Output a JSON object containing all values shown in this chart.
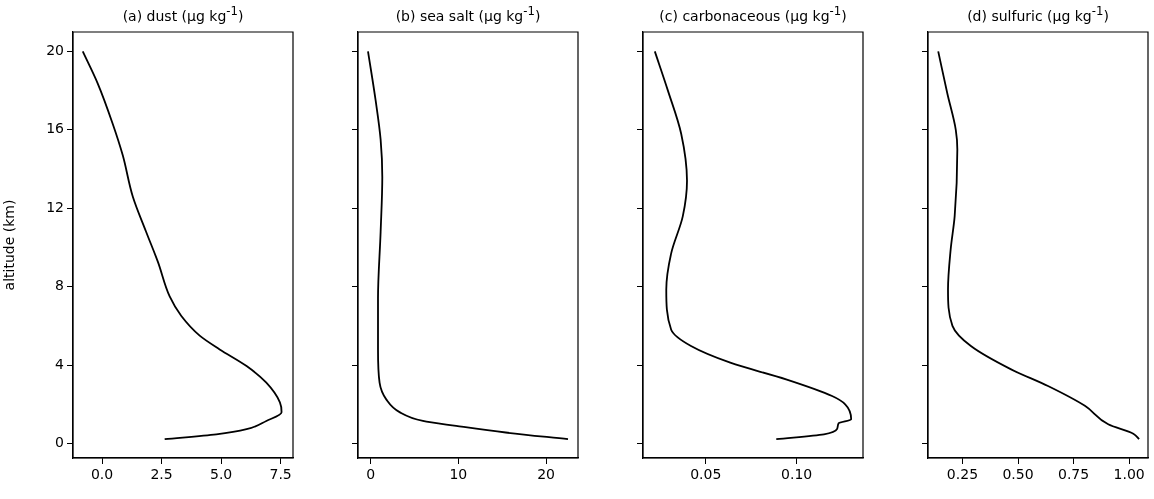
{
  "chart_data": [
    {
      "type": "line",
      "title": "(a) dust (μg kg$^{-1}$)",
      "ylabel": "altitude (km)",
      "x": [
        -0.81,
        -0.18,
        0.45,
        0.87,
        1.29,
        1.85,
        2.35,
        2.84,
        3.33,
        4.1,
        4.94,
        6.07,
        6.9,
        7.47,
        7.54,
        6.9,
        6.07,
        4.8,
        2.63
      ],
      "series": [
        {
          "color": "#000000",
          "values": [
            20,
            18.36,
            16.3,
            14.7,
            12.6,
            10.8,
            9.25,
            7.5,
            6.5,
            5.5,
            4.8,
            3.95,
            3.1,
            2.1,
            1.6,
            1.15,
            0.73,
            0.47,
            0.22
          ]
        }
      ],
      "xlim": [
        -1.22,
        8.02
      ],
      "xticks": [
        {
          "value": 0,
          "label": "0.0"
        },
        2.5,
        {
          "value": 5,
          "label": "5.0"
        },
        7.5
      ],
      "ylim": [
        -0.74,
        20.99
      ],
      "yticks": [
        0,
        4,
        8,
        12,
        16,
        20
      ]
    },
    {
      "type": "line",
      "title": "(b) sea salt (μg kg$^{-1}$)",
      "x": [
        -0.3,
        0.57,
        1.14,
        1.33,
        1.14,
        0.84,
        0.84,
        1.02,
        1.78,
        3.3,
        5.96,
        9.75,
        15.4,
        22.5
      ],
      "series": [
        {
          "color": "#000000",
          "values": [
            20,
            17.5,
            15.5,
            13.6,
            10.8,
            7.4,
            4.8,
            3.1,
            2.25,
            1.6,
            1.15,
            0.9,
            0.56,
            0.22
          ]
        }
      ],
      "xlim": [
        -1.44,
        23.64
      ],
      "xticks": [
        0,
        10,
        20
      ],
      "ylim": [
        -0.74,
        20.99
      ],
      "yticks": [
        0,
        4,
        8,
        12,
        16,
        20
      ],
      "tick_labels": "x"
    },
    {
      "type": "line",
      "title": "(c) carbonaceous (μg kg$^{-1}$)",
      "x": [
        0.022,
        0.0292,
        0.0365,
        0.0397,
        0.0374,
        0.031,
        0.0283,
        0.031,
        0.0419,
        0.0635,
        0.0942,
        0.1195,
        0.1267,
        0.13,
        0.1231,
        0.1222,
        0.115,
        0.0888
      ],
      "series": [
        {
          "color": "#000000",
          "values": [
            20,
            18,
            15.8,
            13.4,
            11.6,
            9.7,
            7.85,
            5.8,
            4.97,
            4.12,
            3.27,
            2.42,
            2,
            1.24,
            1.03,
            0.73,
            0.47,
            0.22
          ]
        }
      ],
      "xlim": [
        0.0155,
        0.1365
      ],
      "xticks": [
        0.05,
        {
          "value": 0.1,
          "label": "0.10"
        }
      ],
      "ylim": [
        -0.74,
        20.99
      ],
      "yticks": [
        0,
        4,
        8,
        12,
        16,
        20
      ],
      "tick_labels": "x"
    },
    {
      "type": "line",
      "title": "(d) sulfuric (μg kg$^{-1}$)",
      "x": [
        0.141,
        0.182,
        0.22,
        0.227,
        0.215,
        0.197,
        0.185,
        0.205,
        0.288,
        0.469,
        0.635,
        0.801,
        0.906,
        1.019,
        1.045
      ],
      "series": [
        {
          "color": "#000000",
          "values": [
            20,
            17.85,
            16,
            15,
            11.6,
            9.9,
            7.85,
            6,
            4.97,
            3.78,
            2.93,
            1.92,
            0.98,
            0.5,
            0.22
          ]
        }
      ],
      "xlim": [
        0.095,
        1.085
      ],
      "xticks": [
        0.25,
        {
          "value": 0.5,
          "label": "0.50"
        },
        0.75,
        {
          "value": 1,
          "label": "1.00"
        }
      ],
      "ylim": [
        -0.74,
        20.99
      ],
      "yticks": [
        0,
        4,
        8,
        12,
        16,
        20
      ],
      "tick_labels": "x"
    }
  ]
}
